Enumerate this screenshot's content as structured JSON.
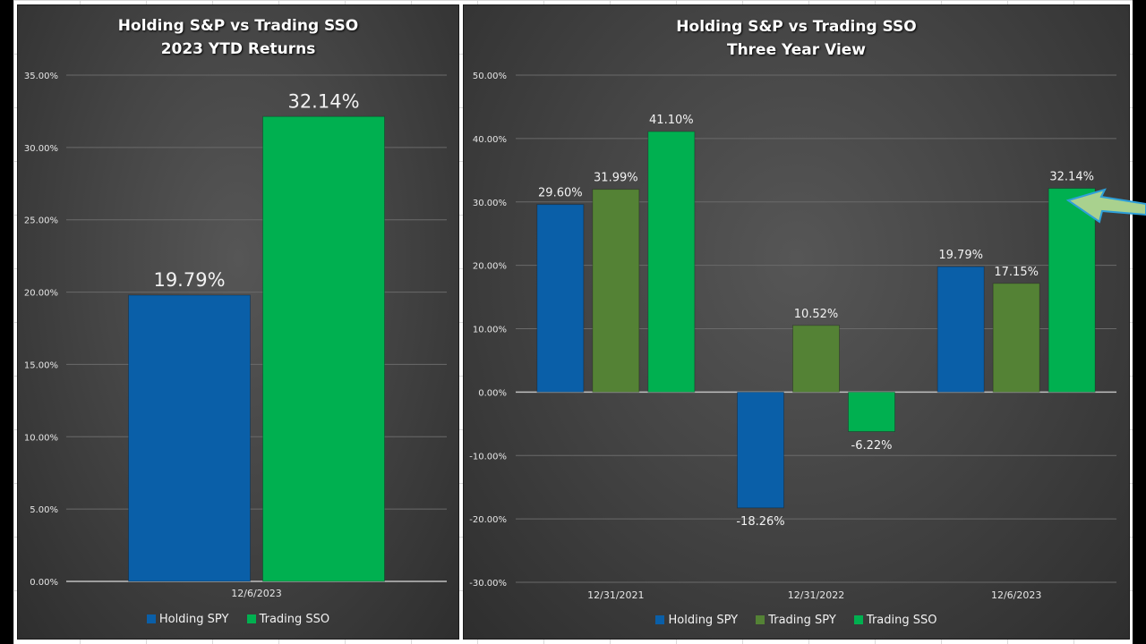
{
  "colors": {
    "holding_spy": "#0a5fa8",
    "trading_spy": "#548235",
    "trading_sso": "#00b050",
    "grid": "#6a6a6a",
    "text": "#f2f2f2",
    "arrow_fill": "#a9d18e",
    "arrow_stroke": "#2e9fd8"
  },
  "chart_data": [
    {
      "type": "bar",
      "title": "Holding S&P vs Trading SSO",
      "subtitle": "2023 YTD Returns",
      "categories": [
        "12/6/2023"
      ],
      "series": [
        {
          "name": "Holding SPY",
          "values": [
            19.79
          ],
          "labels": [
            "19.79%"
          ],
          "color_key": "holding_spy"
        },
        {
          "name": "Trading SSO",
          "values": [
            32.14
          ],
          "labels": [
            "32.14%"
          ],
          "color_key": "trading_sso"
        }
      ],
      "xlabel": "",
      "ylabel": "",
      "ylim": [
        0,
        35
      ],
      "yticks": [
        0,
        5,
        10,
        15,
        20,
        25,
        30,
        35
      ],
      "ytick_labels": [
        "0.00%",
        "5.00%",
        "10.00%",
        "15.00%",
        "20.00%",
        "25.00%",
        "30.00%",
        "35.00%"
      ],
      "grid": true,
      "legend": "bottom"
    },
    {
      "type": "bar",
      "title": "Holding S&P vs Trading SSO",
      "subtitle": "Three Year View",
      "categories": [
        "12/31/2021",
        "12/31/2022",
        "12/6/2023"
      ],
      "series": [
        {
          "name": "Holding SPY",
          "values": [
            29.6,
            -18.26,
            19.79
          ],
          "labels": [
            "29.60%",
            "-18.26%",
            "19.79%"
          ],
          "color_key": "holding_spy"
        },
        {
          "name": "Trading SPY",
          "values": [
            31.99,
            10.52,
            17.15
          ],
          "labels": [
            "31.99%",
            "10.52%",
            "17.15%"
          ],
          "color_key": "trading_spy"
        },
        {
          "name": "Trading SSO",
          "values": [
            41.1,
            -6.22,
            32.14
          ],
          "labels": [
            "41.10%",
            "-6.22%",
            "32.14%"
          ],
          "color_key": "trading_sso"
        }
      ],
      "xlabel": "",
      "ylabel": "",
      "ylim": [
        -30,
        50
      ],
      "yticks": [
        -30,
        -20,
        -10,
        0,
        10,
        20,
        30,
        40,
        50
      ],
      "ytick_labels": [
        "-30.00%",
        "-20.00%",
        "-10.00%",
        "0.00%",
        "10.00%",
        "20.00%",
        "30.00%",
        "40.00%",
        "50.00%"
      ],
      "grid": true,
      "legend": "bottom",
      "annotation": "arrow pointing at 12/6/2023 Trading SSO bar"
    }
  ]
}
